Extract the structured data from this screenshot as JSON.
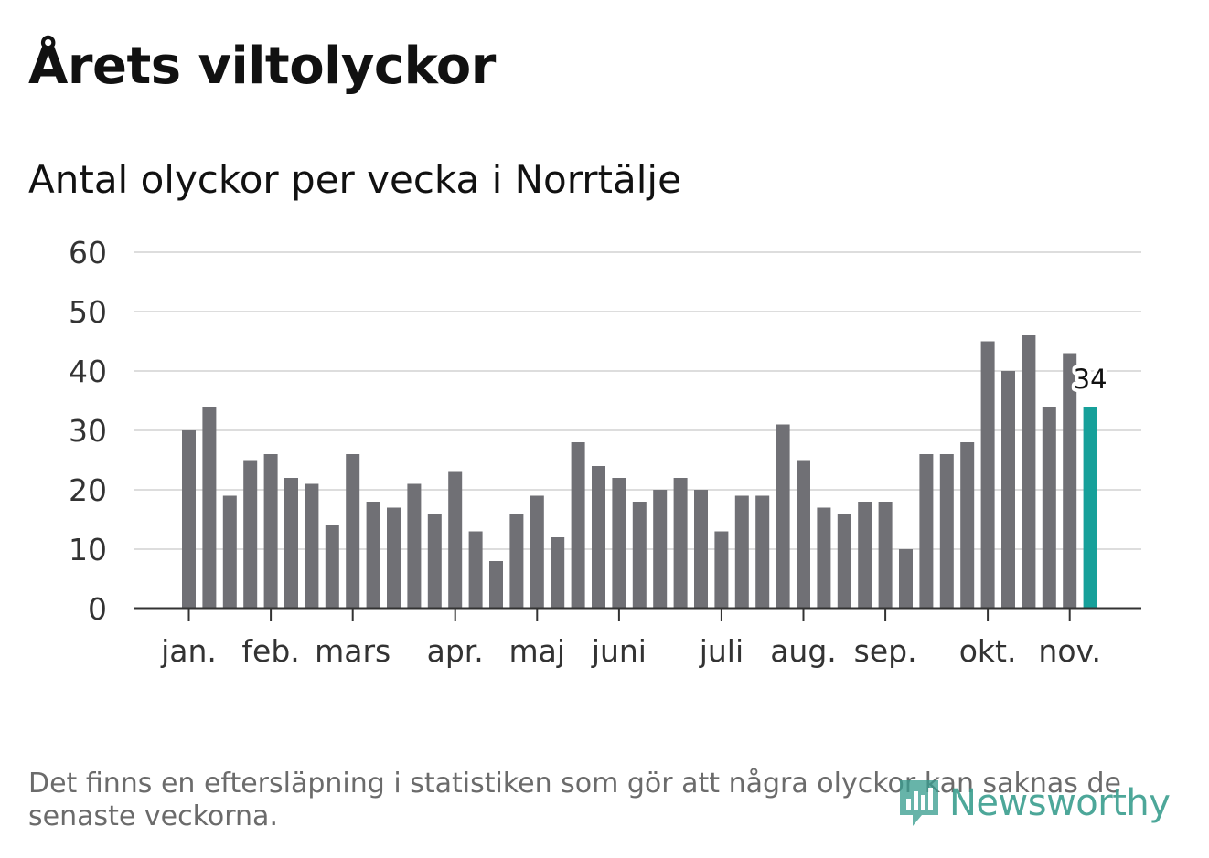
{
  "header": {
    "title": "Årets viltolyckor",
    "subtitle": "Antal olyckor per vecka i Norrtälje"
  },
  "footer": {
    "note": "Det finns en eftersläpning i statistiken som gör att några olyckor kan saknas de senaste veckorna.",
    "logo_text": "Newsworthy"
  },
  "colors": {
    "bar": "#707075",
    "highlight": "#16a09a",
    "grid": "#dddddd",
    "axis": "#333333",
    "logo": "#3a9e8f"
  },
  "chart_data": {
    "type": "bar",
    "title": "Antal olyckor per vecka i Norrtälje",
    "xlabel": "",
    "ylabel": "",
    "ylim": [
      0,
      60
    ],
    "yticks": [
      0,
      10,
      20,
      30,
      40,
      50,
      60
    ],
    "values": [
      30,
      34,
      19,
      25,
      26,
      22,
      21,
      14,
      26,
      18,
      17,
      21,
      16,
      23,
      13,
      8,
      16,
      19,
      12,
      28,
      24,
      22,
      18,
      20,
      22,
      20,
      13,
      19,
      19,
      31,
      25,
      17,
      16,
      18,
      18,
      10,
      26,
      26,
      28,
      45,
      40,
      46,
      34,
      43,
      34
    ],
    "highlight_index": 44,
    "highlight_label": "34",
    "month_labels": [
      {
        "label": "jan.",
        "bar_index": 0
      },
      {
        "label": "feb.",
        "bar_index": 4
      },
      {
        "label": "mars",
        "bar_index": 8
      },
      {
        "label": "apr.",
        "bar_index": 13
      },
      {
        "label": "maj",
        "bar_index": 17
      },
      {
        "label": "juni",
        "bar_index": 21
      },
      {
        "label": "juli",
        "bar_index": 26
      },
      {
        "label": "aug.",
        "bar_index": 30
      },
      {
        "label": "sep.",
        "bar_index": 34
      },
      {
        "label": "okt.",
        "bar_index": 39
      },
      {
        "label": "nov.",
        "bar_index": 43
      }
    ],
    "grid": true
  }
}
